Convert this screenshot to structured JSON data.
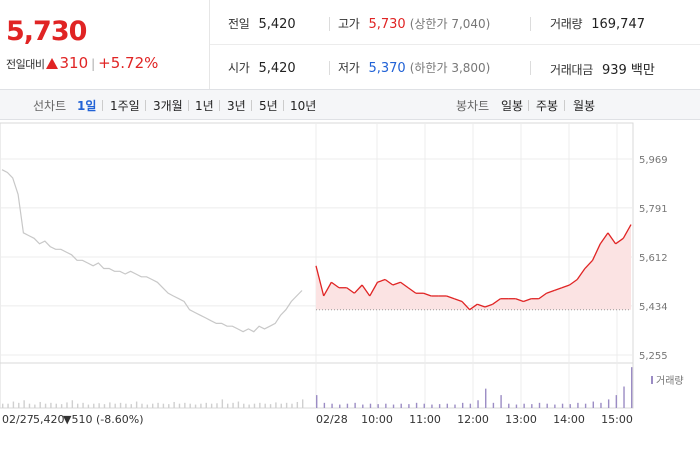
{
  "quote": {
    "current_price": "5,730",
    "change_label": "전일대비",
    "change_amount": "310",
    "change_percent": "+5.72%",
    "prev_close_label": "전일",
    "prev_close": "5,420",
    "high_label": "고가",
    "high": "5,730",
    "upper_limit": "(상한가 7,040)",
    "volume_label": "거래량",
    "volume": "169,747",
    "open_label": "시가",
    "open": "5,420",
    "low_label": "저가",
    "low": "5,370",
    "lower_limit": "(하한가 3,800)",
    "value_label": "거래대금",
    "value": "939 백만"
  },
  "line_tabs": {
    "title": "선차트",
    "items": [
      "1일",
      "1주일",
      "3개월",
      "1년",
      "3년",
      "5년",
      "10년"
    ],
    "active": "1일"
  },
  "candle_tabs": {
    "title": "봉차트",
    "items": [
      "일봉",
      "주봉",
      "월봉"
    ]
  },
  "colors": {
    "up": "#e02424",
    "down": "#2162d6",
    "prev_day": "#c8c8c8",
    "fill_up": "#fbe3e3"
  },
  "chart_data": {
    "type": "line",
    "yticks": [
      5255,
      5434,
      5612,
      5791,
      5969
    ],
    "ytick_labels": [
      "5,255",
      "5,434",
      "5,612",
      "5,791",
      "5,969"
    ],
    "ylim": [
      5255,
      5969
    ],
    "baseline": 5420,
    "prev_day_label": "02/27",
    "prev_day_summary": {
      "close": "5,420",
      "change": "510",
      "percent": "(-8.60%)"
    },
    "today_label": "02/28",
    "xticks": [
      "10:00",
      "11:00",
      "12:00",
      "13:00",
      "14:00",
      "15:00"
    ],
    "volume_legend": "거래량",
    "prev_day_series": {
      "name": "02/27",
      "values": [
        5930,
        5920,
        5900,
        5840,
        5700,
        5690,
        5680,
        5660,
        5670,
        5650,
        5640,
        5640,
        5630,
        5620,
        5600,
        5600,
        5590,
        5580,
        5590,
        5570,
        5570,
        5560,
        5560,
        5550,
        5560,
        5550,
        5540,
        5540,
        5530,
        5520,
        5500,
        5480,
        5470,
        5460,
        5450,
        5420,
        5410,
        5400,
        5390,
        5380,
        5370,
        5370,
        5360,
        5360,
        5350,
        5340,
        5350,
        5340,
        5360,
        5350,
        5360,
        5370,
        5400,
        5420,
        5450,
        5470,
        5490
      ]
    },
    "today_series": {
      "name": "02/28",
      "time": [
        "09:00",
        "09:05",
        "09:10",
        "09:20",
        "09:30",
        "09:40",
        "09:50",
        "10:00",
        "10:10",
        "10:20",
        "10:30",
        "10:40",
        "10:50",
        "11:00",
        "11:10",
        "11:20",
        "11:30",
        "11:40",
        "11:50",
        "12:00",
        "12:10",
        "12:20",
        "12:30",
        "12:40",
        "12:50",
        "13:00",
        "13:10",
        "13:20",
        "13:30",
        "13:40",
        "13:50",
        "14:00",
        "14:10",
        "14:20",
        "14:30",
        "14:40",
        "14:50",
        "15:00",
        "15:10",
        "15:20",
        "15:25",
        "15:30"
      ],
      "values": [
        5580,
        5470,
        5520,
        5500,
        5500,
        5480,
        5510,
        5470,
        5520,
        5530,
        5510,
        5520,
        5500,
        5480,
        5480,
        5470,
        5470,
        5470,
        5460,
        5450,
        5420,
        5440,
        5430,
        5440,
        5460,
        5460,
        5460,
        5450,
        5460,
        5460,
        5480,
        5490,
        5500,
        5510,
        5530,
        5570,
        5600,
        5660,
        5700,
        5660,
        5680,
        5730
      ]
    },
    "prev_day_volume": [
      0.1,
      0.1,
      0.15,
      0.12,
      0.18,
      0.1,
      0.08,
      0.14,
      0.1,
      0.12,
      0.1,
      0.09,
      0.13,
      0.18,
      0.1,
      0.12,
      0.08,
      0.1,
      0.11,
      0.09,
      0.13,
      0.1,
      0.12,
      0.1,
      0.09,
      0.15,
      0.1,
      0.08,
      0.1,
      0.12,
      0.1,
      0.09,
      0.14,
      0.1,
      0.12,
      0.1,
      0.08,
      0.1,
      0.12,
      0.1,
      0.11,
      0.2,
      0.1,
      0.12,
      0.15,
      0.1,
      0.08,
      0.1,
      0.12,
      0.1,
      0.09,
      0.13,
      0.1,
      0.12,
      0.1,
      0.14,
      0.2
    ],
    "today_volume": [
      0.3,
      0.12,
      0.1,
      0.08,
      0.1,
      0.12,
      0.08,
      0.1,
      0.09,
      0.1,
      0.08,
      0.1,
      0.09,
      0.12,
      0.1,
      0.08,
      0.09,
      0.1,
      0.08,
      0.12,
      0.1,
      0.18,
      0.45,
      0.12,
      0.3,
      0.1,
      0.08,
      0.1,
      0.09,
      0.12,
      0.1,
      0.08,
      0.1,
      0.09,
      0.12,
      0.1,
      0.15,
      0.12,
      0.2,
      0.3,
      0.5,
      0.95
    ]
  }
}
